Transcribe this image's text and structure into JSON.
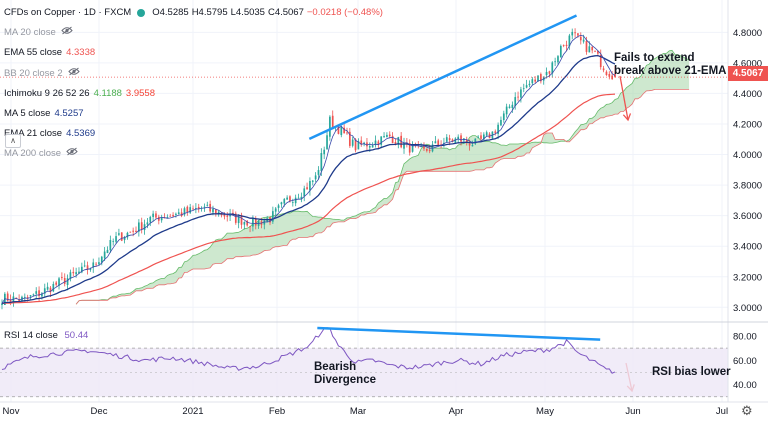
{
  "header": {
    "symbol": "CFDs on Copper · 1D · FXCM",
    "open": "O4.5285",
    "high": "H4.5795",
    "low": "L4.5035",
    "close": "C4.5067",
    "change": "−0.0218 (−0.48%)"
  },
  "indicators": [
    {
      "label": "MA 20 close",
      "value": "",
      "visible": false,
      "color": "#9598a1"
    },
    {
      "label": "EMA 55 close",
      "value": "4.3338",
      "visible": true,
      "color": "#ef5350"
    },
    {
      "label": "BB 20 close 2",
      "value": "",
      "visible": false,
      "color": "#9598a1"
    },
    {
      "label": "Ichimoku 9 26 52 26",
      "value": "4.1188",
      "value2": "3.9558",
      "visible": true,
      "color": "#4caf50",
      "color2": "#f44336"
    },
    {
      "label": "MA 5 close",
      "value": "4.5257",
      "visible": true,
      "color": "#1e3a8a"
    },
    {
      "label": "EMA 21 close",
      "value": "4.5369",
      "visible": true,
      "color": "#1e3a8a"
    },
    {
      "label": "MA 200 close",
      "value": "",
      "visible": false,
      "color": "#9598a1"
    }
  ],
  "annotations": {
    "fails_line1": "Fails to extend",
    "fails_line2": "break above 21-EMA",
    "bearish_line1": "Bearish",
    "bearish_line2": "Divergence",
    "rsi_bias": "RSI bias lower"
  },
  "rsi_legend": {
    "label": "RSI 14 close",
    "value": "50.44"
  },
  "last_price": "4.5067",
  "chart_data": [
    {
      "type": "candlestick",
      "title": "CFDs on Copper · 1D · FXCM",
      "x_ticks": [
        "Nov",
        "Dec",
        "2021",
        "Feb",
        "Mar",
        "Apr",
        "May",
        "Jun",
        "Jul"
      ],
      "y_ticks": [
        "4.8000",
        "4.6000",
        "4.4000",
        "4.2000",
        "4.0000",
        "3.8000",
        "3.6000",
        "3.4000",
        "3.2000",
        "3.0000"
      ],
      "ylim": [
        2.93,
        4.92
      ],
      "keypoints": [
        [
          0,
          3.06
        ],
        [
          8,
          3.05
        ],
        [
          14,
          3.1
        ],
        [
          20,
          3.16
        ],
        [
          26,
          3.22
        ],
        [
          32,
          3.27
        ],
        [
          36,
          3.37
        ],
        [
          40,
          3.45
        ],
        [
          46,
          3.5
        ],
        [
          52,
          3.58
        ],
        [
          58,
          3.6
        ],
        [
          64,
          3.62
        ],
        [
          70,
          3.65
        ],
        [
          76,
          3.62
        ],
        [
          82,
          3.58
        ],
        [
          88,
          3.55
        ],
        [
          94,
          3.58
        ],
        [
          100,
          3.7
        ],
        [
          106,
          3.77
        ],
        [
          110,
          3.85
        ],
        [
          113,
          4.05
        ],
        [
          115,
          4.22
        ],
        [
          118,
          4.17
        ],
        [
          124,
          4.05
        ],
        [
          130,
          4.08
        ],
        [
          136,
          4.12
        ],
        [
          142,
          4.05
        ],
        [
          148,
          4.02
        ],
        [
          154,
          4.08
        ],
        [
          160,
          4.1
        ],
        [
          166,
          4.07
        ],
        [
          172,
          4.14
        ],
        [
          176,
          4.25
        ],
        [
          180,
          4.38
        ],
        [
          184,
          4.45
        ],
        [
          188,
          4.5
        ],
        [
          192,
          4.55
        ],
        [
          196,
          4.7
        ],
        [
          200,
          4.78
        ],
        [
          204,
          4.72
        ],
        [
          208,
          4.66
        ],
        [
          212,
          4.55
        ],
        [
          215,
          4.51
        ]
      ],
      "ema21_last": 4.5369,
      "ema55_last": 4.3338,
      "ichimoku_span_a_last": 4.1188,
      "ichimoku_span_b_last": 3.9558,
      "last": 4.5067
    },
    {
      "type": "line",
      "title": "RSI 14 close",
      "y_ticks": [
        "80.00",
        "60.00",
        "40.00"
      ],
      "ylim": [
        29,
        89
      ],
      "band": [
        30,
        70
      ],
      "keypoints": [
        [
          0,
          54
        ],
        [
          10,
          63
        ],
        [
          20,
          66
        ],
        [
          30,
          68
        ],
        [
          40,
          64
        ],
        [
          50,
          60
        ],
        [
          60,
          62
        ],
        [
          70,
          58
        ],
        [
          80,
          53
        ],
        [
          90,
          55
        ],
        [
          100,
          64
        ],
        [
          108,
          72
        ],
        [
          112,
          84
        ],
        [
          115,
          86
        ],
        [
          118,
          72
        ],
        [
          124,
          58
        ],
        [
          130,
          60
        ],
        [
          136,
          56
        ],
        [
          142,
          54
        ],
        [
          148,
          55
        ],
        [
          154,
          58
        ],
        [
          160,
          60
        ],
        [
          168,
          57
        ],
        [
          176,
          64
        ],
        [
          184,
          67
        ],
        [
          192,
          69
        ],
        [
          198,
          75
        ],
        [
          202,
          66
        ],
        [
          208,
          58
        ],
        [
          212,
          52
        ],
        [
          215,
          50.44
        ]
      ],
      "last": 50.44
    }
  ]
}
